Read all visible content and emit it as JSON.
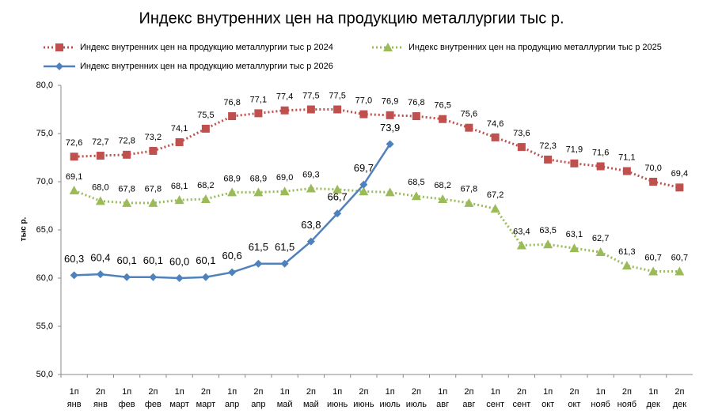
{
  "chart_data": {
    "type": "line",
    "title": "Индекс внутренних цен на продукцию металлургии тыс р.",
    "y_label": "тыс р.",
    "categories": [
      [
        "1п",
        "янв"
      ],
      [
        "2п",
        "янв"
      ],
      [
        "1п",
        "фев"
      ],
      [
        "2п",
        "фев"
      ],
      [
        "1п",
        "март"
      ],
      [
        "2п",
        "март"
      ],
      [
        "1п",
        "апр"
      ],
      [
        "2п",
        "апр"
      ],
      [
        "1п",
        "май"
      ],
      [
        "2п",
        "май"
      ],
      [
        "1п",
        "июнь"
      ],
      [
        "2п",
        "июнь"
      ],
      [
        "1п",
        "июль"
      ],
      [
        "2п",
        "июль"
      ],
      [
        "1п",
        "авг"
      ],
      [
        "2п",
        "авг"
      ],
      [
        "1п",
        "сент"
      ],
      [
        "2п",
        "сент"
      ],
      [
        "1п",
        "окт"
      ],
      [
        "2п",
        "окт"
      ],
      [
        "1п",
        "нояб"
      ],
      [
        "2п",
        "нояб"
      ],
      [
        "1п",
        "дек"
      ],
      [
        "2п",
        "дек"
      ]
    ],
    "ylim": [
      50,
      80
    ],
    "yticks": [
      {
        "value": 50,
        "label": "50,0"
      },
      {
        "value": 55,
        "label": "55,0"
      },
      {
        "value": 60,
        "label": "60,0"
      },
      {
        "value": 65,
        "label": "65,0"
      },
      {
        "value": 70,
        "label": "70,0"
      },
      {
        "value": 75,
        "label": "75,0"
      },
      {
        "value": 80,
        "label": "80,0"
      }
    ],
    "legend": "top",
    "series": [
      {
        "name": "Индекс внутренних цен на продукцию металлургии тыс р 2024",
        "color": "#c0504d",
        "marker": "square",
        "dashed": true,
        "values": [
          72.6,
          72.7,
          72.8,
          73.2,
          74.1,
          75.5,
          76.8,
          77.1,
          77.4,
          77.5,
          77.5,
          77.0,
          76.9,
          76.8,
          76.5,
          75.6,
          74.6,
          73.6,
          72.3,
          71.9,
          71.6,
          71.1,
          70.0,
          69.4
        ],
        "value_labels": [
          "72,6",
          "72,7",
          "72,8",
          "73,2",
          "74,1",
          "75,5",
          "76,8",
          "77,1",
          "77,4",
          "77,5",
          "77,5",
          "77,0",
          "76,9",
          "76,8",
          "76,5",
          "75,6",
          "74,6",
          "73,6",
          "72,3",
          "71,9",
          "71,6",
          "71,1",
          "70,0",
          "69,4"
        ]
      },
      {
        "name": "Индекс внутренних цен на продукцию металлургии тыс р 2025",
        "color": "#9bbb59",
        "marker": "triangle",
        "dashed": true,
        "values": [
          69.1,
          68.0,
          67.8,
          67.8,
          68.1,
          68.2,
          68.9,
          68.9,
          69.0,
          69.3,
          69.2,
          69.0,
          68.9,
          68.5,
          68.2,
          67.8,
          67.2,
          63.4,
          63.5,
          63.1,
          62.7,
          61.3,
          60.7,
          60.7
        ],
        "value_labels": [
          "69,1",
          "68,0",
          "67,8",
          "67,8",
          "68,1",
          "68,2",
          "68,9",
          "68,9",
          "69,0",
          "69,3",
          null,
          null,
          null,
          "68,5",
          "68,2",
          "67,8",
          "67,2",
          "63,4",
          "63,5",
          "63,1",
          "62,7",
          "61,3",
          "60,7",
          "60,7"
        ]
      },
      {
        "name": "Индекс внутренних цен на продукцию металлургии тыс р 2026",
        "color": "#4f81bd",
        "marker": "diamond",
        "dashed": false,
        "values": [
          60.3,
          60.4,
          60.1,
          60.1,
          60.0,
          60.1,
          60.6,
          61.5,
          61.5,
          63.8,
          66.7,
          69.7,
          73.9,
          null,
          null,
          null,
          null,
          null,
          null,
          null,
          null,
          null,
          null,
          null
        ],
        "value_labels": [
          "60,3",
          "60,4",
          "60,1",
          "60,1",
          "60,0",
          "60,1",
          "60,6",
          "61,5",
          "61,5",
          "63,8",
          "66,7",
          "69,7",
          "73,9",
          null,
          null,
          null,
          null,
          null,
          null,
          null,
          null,
          null,
          null,
          null
        ]
      }
    ]
  }
}
